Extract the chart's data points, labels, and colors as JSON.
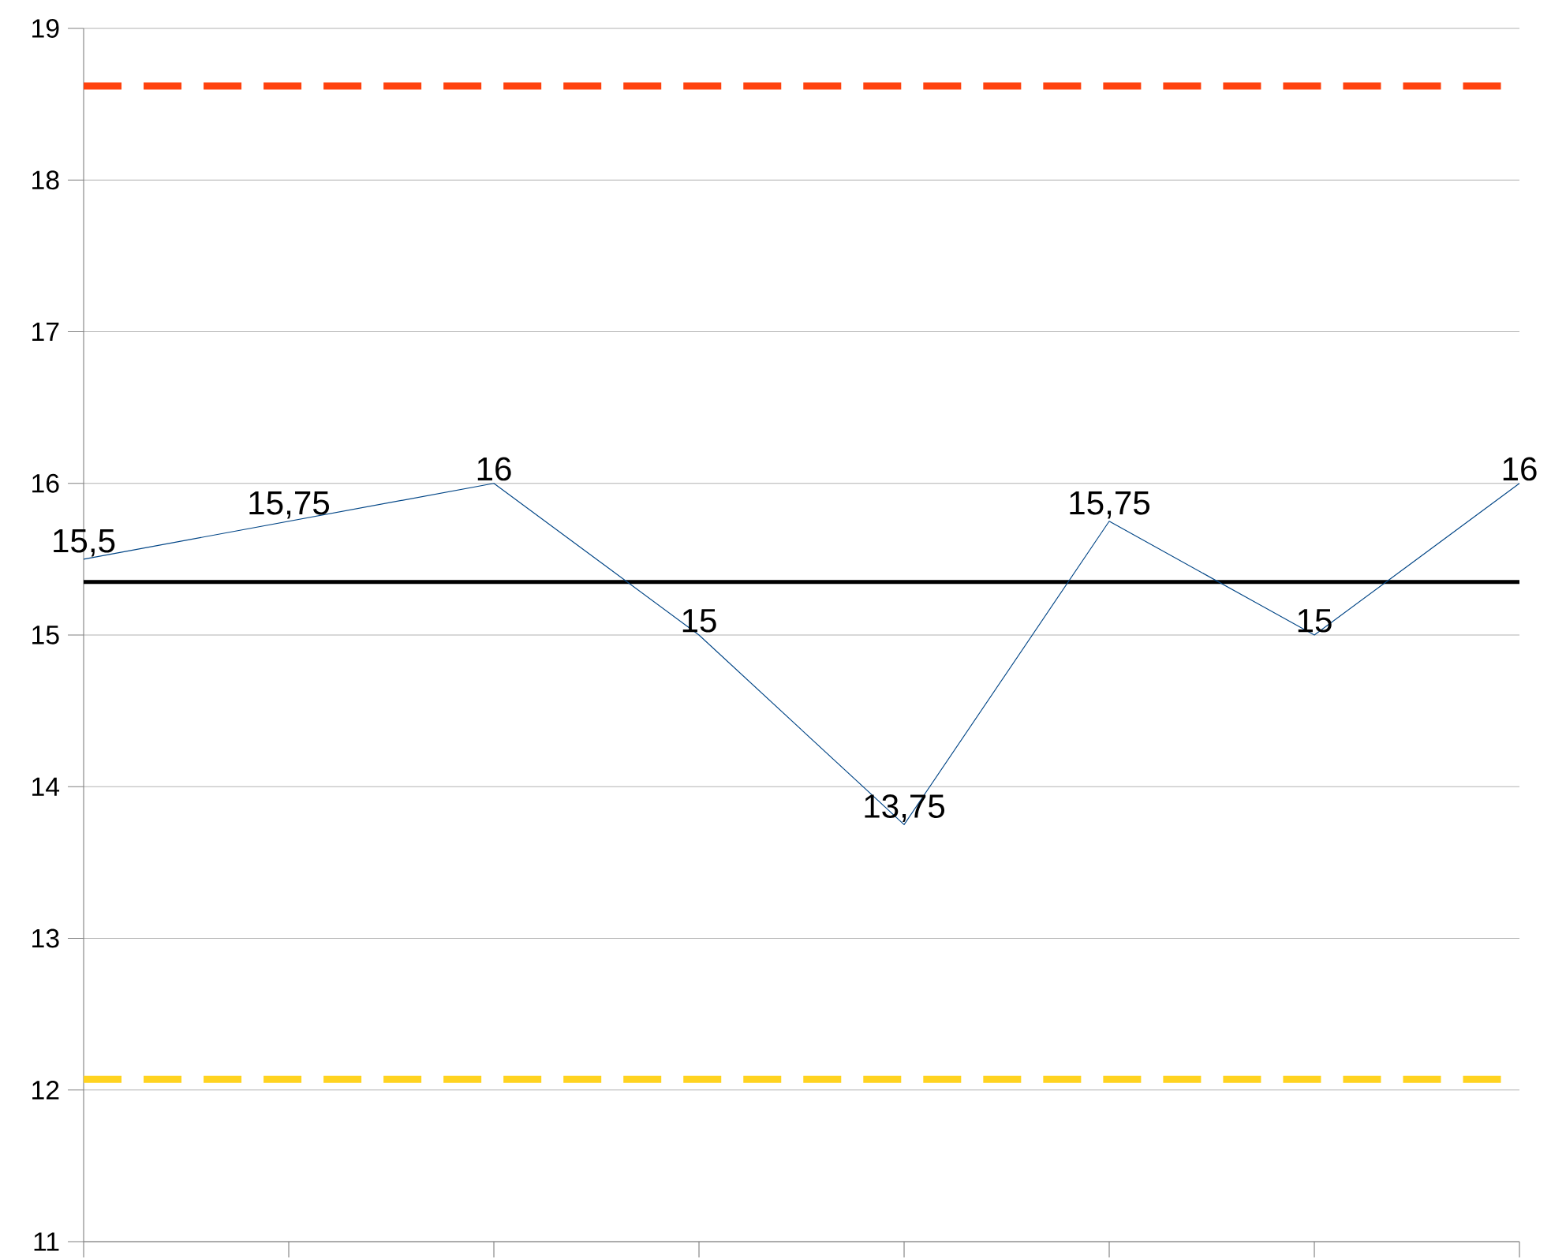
{
  "chart_data": {
    "type": "line",
    "categories": [
      null,
      null,
      null,
      null,
      null,
      null,
      null,
      null
    ],
    "series": [
      {
        "color": "#004586",
        "values": [
          15.5,
          15.75,
          16,
          15,
          13.75,
          15.75,
          15,
          16
        ],
        "value_labels": [
          "15,5",
          "15,75",
          "16",
          "15",
          "13,75",
          "15,75",
          "15",
          "16"
        ]
      }
    ],
    "ylim": [
      11,
      19
    ],
    "yticks": [
      11,
      12,
      13,
      14,
      15,
      16,
      17,
      18,
      19
    ],
    "grid": "y",
    "marker": "none",
    "line_style": "solid",
    "tick_labels": "y",
    "ref_lines": [
      {
        "axis": "y",
        "value": 18.62,
        "color": "#ff420e",
        "line_style": "dashed"
      },
      {
        "axis": "y",
        "value": 15.35,
        "color": "#000000",
        "line_style": "solid"
      },
      {
        "axis": "y",
        "value": 12.07,
        "color": "#ffd320",
        "line_style": "dashed"
      }
    ]
  }
}
